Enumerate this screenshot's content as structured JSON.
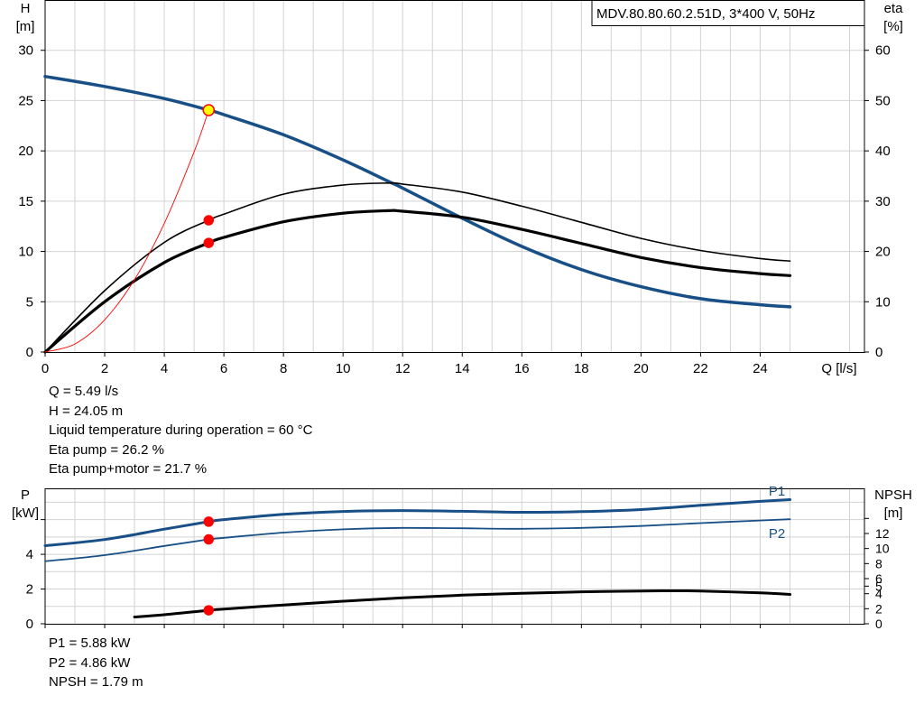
{
  "chart_data": [
    {
      "type": "line",
      "title": "MDV.80.80.60.2.51D, 3*400 V, 50Hz",
      "xlabel": "Q [l/s]",
      "ylabel_left": [
        "H",
        "[m]"
      ],
      "ylabel_right": [
        "eta",
        "[%]"
      ],
      "xlim": [
        0,
        27.5
      ],
      "ylim_left": [
        0,
        35
      ],
      "ylim_right": [
        0,
        70
      ],
      "xticks": [
        0,
        2,
        4,
        6,
        8,
        10,
        12,
        14,
        16,
        18,
        20,
        22,
        24
      ],
      "yticks_left": [
        0,
        5,
        10,
        15,
        20,
        25,
        30
      ],
      "yticks_right": [
        0,
        10,
        20,
        30,
        40,
        50,
        60
      ],
      "grid": true,
      "series": [
        {
          "axis": "left",
          "color": "#184f86",
          "x": [
            0,
            2,
            4,
            5.49,
            6,
            8,
            10,
            11.5,
            12,
            14,
            16,
            18,
            20,
            22,
            24,
            25
          ],
          "values": [
            27.4,
            26.4,
            25.2,
            24.05,
            23.6,
            21.6,
            19.1,
            17.0,
            16.3,
            13.3,
            10.5,
            8.2,
            6.5,
            5.3,
            4.7,
            4.5
          ]
        },
        {
          "axis": "right",
          "color": "#000000",
          "x": [
            0,
            2,
            4,
            5.49,
            6,
            8,
            10,
            11.5,
            12,
            14,
            16,
            18,
            20,
            22,
            24,
            25
          ],
          "values": [
            0,
            12.2,
            21.8,
            26.2,
            27.4,
            31.4,
            33.2,
            33.6,
            33.4,
            31.8,
            29.0,
            25.8,
            22.6,
            20.2,
            18.6,
            18.1
          ]
        },
        {
          "axis": "right",
          "color": "#000000",
          "x": [
            0,
            2,
            4,
            5.49,
            6,
            8,
            10,
            11.5,
            12,
            14,
            16,
            18,
            20,
            22,
            24,
            25
          ],
          "values": [
            0,
            10.0,
            17.8,
            21.7,
            22.8,
            25.9,
            27.6,
            28.1,
            28.0,
            26.8,
            24.4,
            21.6,
            18.8,
            16.8,
            15.6,
            15.2
          ]
        },
        {
          "axis": "left",
          "color": "#ff0000",
          "x": [
            0,
            1,
            2,
            3,
            4,
            5,
            5.49
          ],
          "values": [
            0,
            0.8,
            3.2,
            7.2,
            12.8,
            19.9,
            24.05
          ]
        }
      ],
      "markers": [
        {
          "x": 5.49,
          "value": 24.05,
          "axis": "left",
          "fill": "#ffff00",
          "stroke": "#ff0000"
        },
        {
          "x": 5.49,
          "value": 26.2,
          "axis": "right",
          "fill": "#ff0000",
          "stroke": "#ff0000"
        },
        {
          "x": 5.49,
          "value": 21.7,
          "axis": "right",
          "fill": "#ff0000",
          "stroke": "#ff0000"
        }
      ]
    },
    {
      "type": "line",
      "ylabel_left": [
        "P",
        "[kW]"
      ],
      "ylabel_right": [
        "NPSH",
        "[m]"
      ],
      "xlim": [
        0,
        27.5
      ],
      "ylim_left": [
        0,
        7.8
      ],
      "ylim_right": [
        0,
        18
      ],
      "xticks": [
        0,
        2,
        4,
        6,
        8,
        10,
        12,
        14,
        16,
        18,
        20,
        22,
        24
      ],
      "yticks_left": [
        0,
        2,
        4
      ],
      "yticks_left_unlabeled": [
        6
      ],
      "yticks_right": [
        0,
        2,
        4,
        5,
        6,
        8,
        10,
        12
      ],
      "yticks_right_unlabeled": [
        14
      ],
      "grid": true,
      "series": [
        {
          "name": "P1",
          "axis": "left",
          "color": "#184f86",
          "x": [
            0,
            2,
            4,
            5.49,
            6,
            8,
            10,
            12,
            14,
            16,
            18,
            20,
            22,
            24,
            25
          ],
          "values": [
            4.5,
            4.85,
            5.45,
            5.88,
            6.0,
            6.3,
            6.47,
            6.52,
            6.48,
            6.42,
            6.46,
            6.58,
            6.82,
            7.05,
            7.15
          ]
        },
        {
          "name": "P2",
          "axis": "left",
          "color": "#184f86",
          "x": [
            0,
            2,
            4,
            5.49,
            6,
            8,
            10,
            12,
            14,
            16,
            18,
            20,
            22,
            24,
            25
          ],
          "values": [
            3.6,
            3.95,
            4.48,
            4.86,
            4.95,
            5.25,
            5.44,
            5.52,
            5.5,
            5.47,
            5.52,
            5.63,
            5.8,
            5.95,
            6.02
          ]
        },
        {
          "name": "NPSH",
          "axis": "right",
          "color": "#000000",
          "x": [
            3,
            4,
            5.49,
            6,
            8,
            10,
            12,
            14,
            16,
            18,
            20,
            21,
            22,
            24,
            25
          ],
          "values": [
            0.9,
            1.2,
            1.79,
            1.95,
            2.5,
            3.0,
            3.45,
            3.8,
            4.05,
            4.25,
            4.35,
            4.38,
            4.35,
            4.1,
            3.9
          ]
        }
      ],
      "markers": [
        {
          "x": 5.49,
          "value": 5.88,
          "axis": "left",
          "fill": "#ff0000",
          "stroke": "#ff0000"
        },
        {
          "x": 5.49,
          "value": 4.86,
          "axis": "left",
          "fill": "#ff0000",
          "stroke": "#ff0000"
        },
        {
          "x": 5.49,
          "value": 1.79,
          "axis": "right",
          "fill": "#ff0000",
          "stroke": "#ff0000"
        }
      ]
    }
  ],
  "info_top": [
    "Q = 5.49 l/s",
    "H = 24.05 m",
    "Liquid temperature during operation = 60 °C",
    "Eta pump = 26.2 %",
    "Eta pump+motor = 21.7 %"
  ],
  "info_bottom": [
    "P1 = 5.88 kW",
    "P2 = 4.86 kW",
    "NPSH = 1.79 m"
  ]
}
